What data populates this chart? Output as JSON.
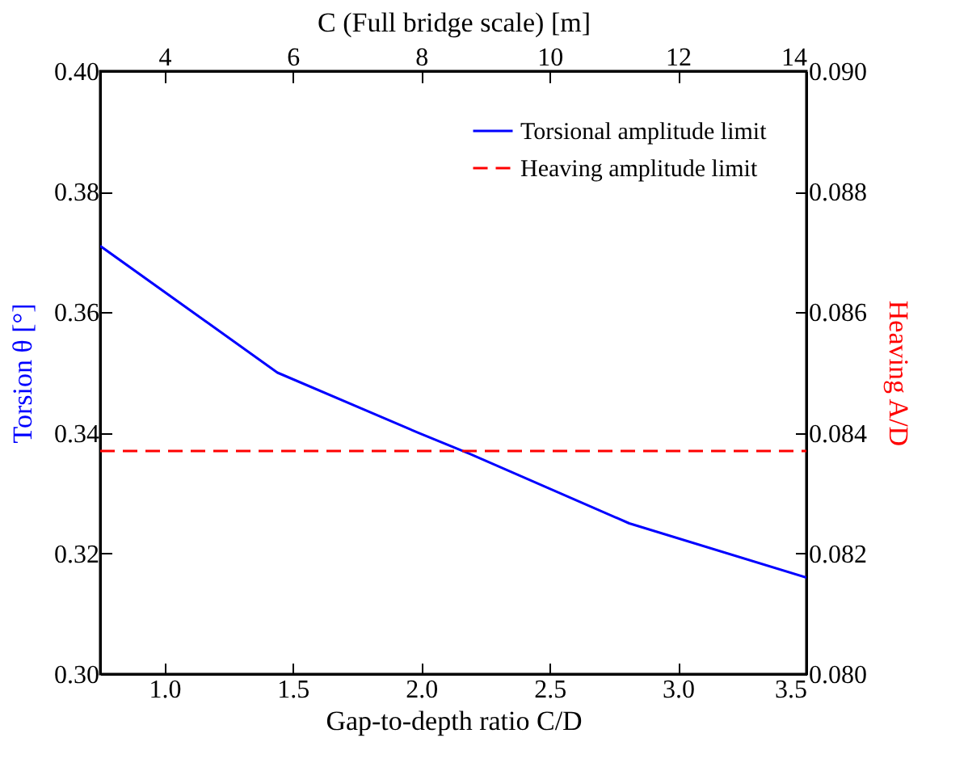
{
  "chart_data": {
    "type": "line",
    "xlabel": "Gap-to-depth ratio C/D",
    "ylabel": "Torsion θ [°]",
    "y2label": "Heaving A/D",
    "x2label": "C (Full bridge scale) [m]",
    "xlim": [
      0.75,
      3.5
    ],
    "xticks": [
      {
        "value": 1,
        "label": "1.0"
      },
      1.5,
      {
        "value": 2,
        "label": "2.0"
      },
      2.5,
      {
        "value": 3,
        "label": "3.0"
      },
      3.5
    ],
    "x2lim": [
      3,
      14
    ],
    "x2ticks": [
      4,
      6,
      8,
      10,
      12,
      14
    ],
    "ylim": [
      0.3,
      0.4
    ],
    "yticks": [
      {
        "value": 0.3,
        "label": "0.30"
      },
      0.32,
      0.34,
      0.36,
      0.38,
      {
        "value": 0.4,
        "label": "0.40"
      }
    ],
    "y2lim": [
      0.08,
      0.09
    ],
    "y2ticks": [
      {
        "value": 0.08,
        "label": "0.080"
      },
      0.082,
      0.084,
      0.086,
      0.088,
      {
        "value": 0.09,
        "label": "0.090"
      }
    ],
    "legend": "top right",
    "series": [
      {
        "name": "Torsional amplitude limit",
        "color": "#0000ff",
        "line_style": "solid",
        "x": [
          0.75,
          1.44,
          1.99,
          2.19,
          2.81,
          3.5
        ],
        "values": [
          0.371,
          0.35,
          0.34,
          0.3365,
          0.325,
          0.316
        ]
      },
      {
        "name": "Heaving amplitude limit",
        "color": "#ff0000",
        "line_style": "dashed",
        "axis": "y2",
        "x": [
          0.75,
          3.5
        ],
        "values": [
          0.0837,
          0.0837
        ]
      }
    ]
  }
}
